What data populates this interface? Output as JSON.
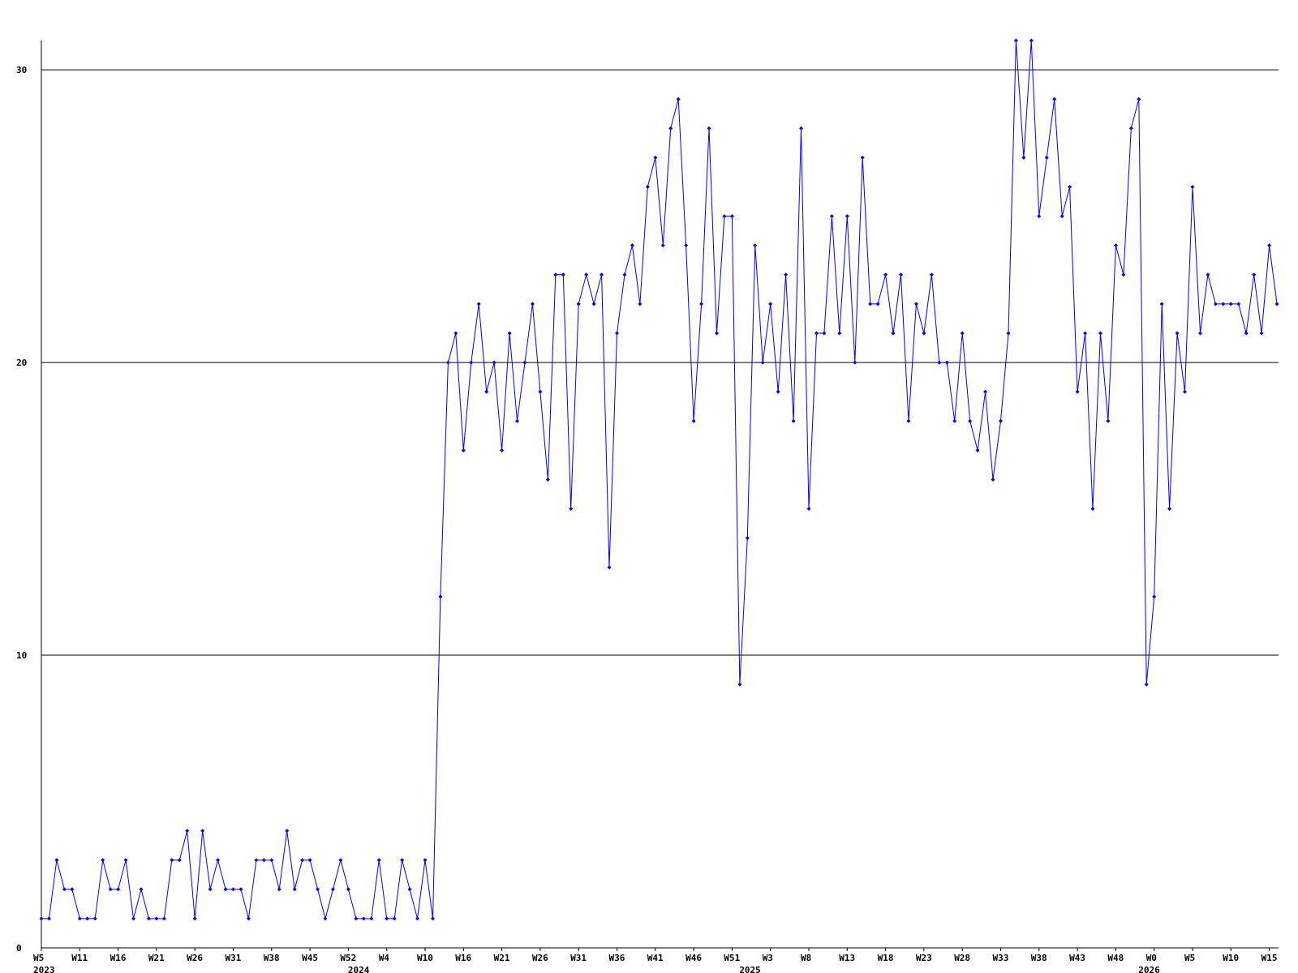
{
  "chart_data": {
    "type": "line",
    "color": "#0000ff",
    "grid": true,
    "ylim": [
      0,
      31
    ],
    "yticks": [
      0,
      10,
      20,
      30
    ],
    "categories": [
      "W5",
      null,
      null,
      null,
      null,
      "W11",
      null,
      null,
      null,
      null,
      "W16",
      null,
      null,
      null,
      null,
      "W21",
      null,
      null,
      null,
      null,
      "W26",
      null,
      null,
      null,
      null,
      "W31",
      null,
      null,
      null,
      null,
      "W38",
      null,
      null,
      null,
      null,
      "W45",
      null,
      null,
      null,
      null,
      "W52",
      null,
      null,
      null,
      null,
      "W4",
      null,
      null,
      null,
      null,
      "W10",
      null,
      null,
      null,
      null,
      "W16",
      null,
      null,
      null,
      null,
      "W21",
      null,
      null,
      null,
      null,
      "W26",
      null,
      null,
      null,
      null,
      "W31",
      null,
      null,
      null,
      null,
      "W36",
      null,
      null,
      null,
      null,
      "W41",
      null,
      null,
      null,
      null,
      "W46",
      null,
      null,
      null,
      null,
      "W51",
      null,
      null,
      null,
      null,
      "W3",
      null,
      null,
      null,
      null,
      "W8",
      null,
      null,
      null,
      null,
      "W13",
      null,
      null,
      null,
      null,
      "W18",
      null,
      null,
      null,
      null,
      "W23",
      null,
      null,
      null,
      null,
      "W28",
      null,
      null,
      null,
      null,
      "W33",
      null,
      null,
      null,
      null,
      "W38",
      null,
      null,
      null,
      null,
      "W43",
      null,
      null,
      null,
      null,
      "W48",
      null,
      null,
      null,
      null,
      "W0",
      null,
      null,
      null,
      null,
      "W5",
      null,
      null,
      null,
      null,
      "W10",
      null,
      null,
      null,
      null,
      "W15",
      null
    ],
    "years": [
      "2023",
      null,
      null,
      null,
      null,
      null,
      null,
      null,
      null,
      null,
      null,
      null,
      null,
      null,
      null,
      null,
      null,
      null,
      null,
      null,
      null,
      null,
      null,
      null,
      null,
      null,
      null,
      null,
      null,
      null,
      null,
      null,
      null,
      null,
      null,
      null,
      null,
      null,
      null,
      null,
      null,
      "2024",
      null,
      null,
      null,
      null,
      null,
      null,
      null,
      null,
      null,
      null,
      null,
      null,
      null,
      null,
      null,
      null,
      null,
      null,
      null,
      null,
      null,
      null,
      null,
      null,
      null,
      null,
      null,
      null,
      null,
      null,
      null,
      null,
      null,
      null,
      null,
      null,
      null,
      null,
      null,
      null,
      null,
      null,
      null,
      null,
      null,
      null,
      null,
      null,
      null,
      null,
      "2025",
      null,
      null,
      null,
      null,
      null,
      null,
      null,
      null,
      null,
      null,
      null,
      null,
      null,
      null,
      null,
      null,
      null,
      null,
      null,
      null,
      null,
      null,
      null,
      null,
      null,
      null,
      null,
      null,
      null,
      null,
      null,
      null,
      null,
      null,
      null,
      null,
      null,
      null,
      null,
      null,
      null,
      null,
      null,
      null,
      null,
      null,
      null,
      null,
      null,
      null,
      null,
      "2026",
      null,
      null,
      null,
      null,
      null,
      null,
      null,
      null,
      null,
      null,
      null,
      null,
      null,
      null,
      null,
      null
    ],
    "values": [
      1,
      1,
      3,
      2,
      2,
      1,
      1,
      1,
      3,
      2,
      2,
      3,
      1,
      2,
      1,
      1,
      1,
      3,
      3,
      4,
      1,
      4,
      2,
      3,
      2,
      2,
      2,
      1,
      3,
      3,
      3,
      2,
      4,
      2,
      3,
      3,
      2,
      1,
      2,
      3,
      2,
      1,
      1,
      1,
      3,
      1,
      1,
      3,
      2,
      1,
      3,
      1,
      12,
      20,
      21,
      17,
      20,
      22,
      19,
      20,
      17,
      21,
      18,
      20,
      22,
      19,
      16,
      23,
      23,
      15,
      22,
      23,
      22,
      23,
      13,
      21,
      23,
      24,
      22,
      26,
      27,
      24,
      28,
      29,
      24,
      18,
      22,
      28,
      21,
      25,
      25,
      9,
      14,
      24,
      20,
      22,
      19,
      23,
      18,
      28,
      15,
      21,
      21,
      25,
      21,
      25,
      20,
      27,
      22,
      22,
      23,
      21,
      23,
      18,
      22,
      21,
      23,
      20,
      20,
      18,
      21,
      18,
      17,
      19,
      16,
      18,
      21,
      31,
      27,
      31,
      25,
      27,
      29,
      25,
      26,
      19,
      21,
      15,
      21,
      18,
      24,
      23,
      28,
      29,
      9,
      12,
      22,
      15,
      21,
      19,
      26,
      21,
      23,
      22,
      22,
      22,
      22,
      21,
      23,
      21,
      24,
      22
    ]
  }
}
